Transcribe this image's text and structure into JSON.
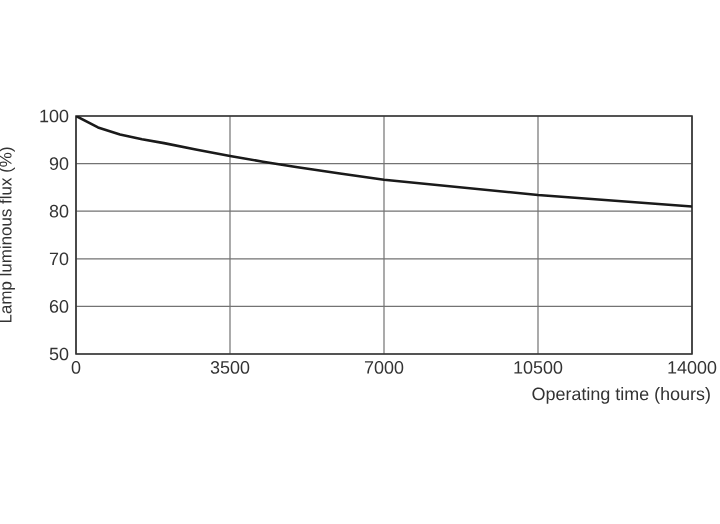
{
  "chart_data": {
    "type": "line",
    "xlabel": "Operating time (hours)",
    "ylabel": "Lamp luminous flux (%)",
    "x": [
      0,
      250,
      500,
      1000,
      1500,
      2000,
      2750,
      3500,
      4250,
      5000,
      6000,
      7000,
      8750,
      10500,
      12250,
      14000
    ],
    "series": [
      {
        "color": "#1a1a1a",
        "values": [
          100,
          98.8,
          97.6,
          96.1,
          95.1,
          94.3,
          92.9,
          91.6,
          90.4,
          89.3,
          87.9,
          86.6,
          85,
          83.4,
          82.2,
          81
        ]
      }
    ],
    "xlim": [
      0,
      14000
    ],
    "ylim": [
      50,
      100
    ],
    "xticks": [
      0,
      3500,
      7000,
      10500,
      14000
    ],
    "yticks": [
      50,
      60,
      70,
      80,
      90,
      100
    ],
    "grid": true,
    "marker": "none",
    "line_style": "solid"
  }
}
